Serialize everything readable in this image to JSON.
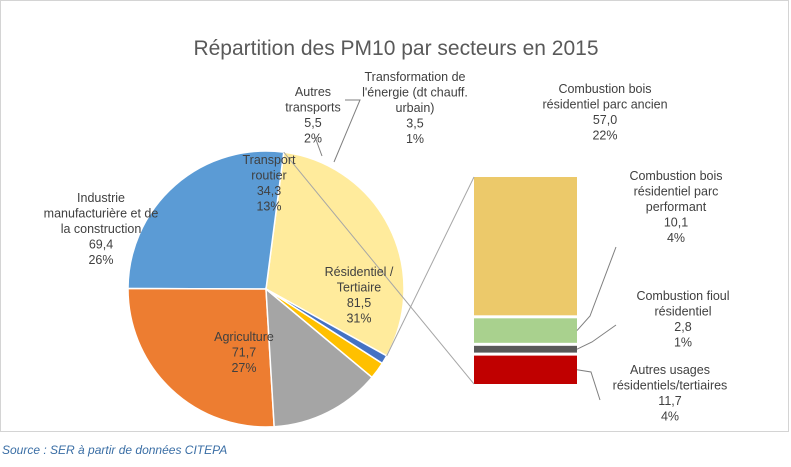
{
  "chart_data": {
    "type": "pie",
    "title": "Répartition des PM10 par secteurs en 2015",
    "slices": [
      {
        "label_lines": [
          "Résidentiel /",
          "Tertiaire"
        ],
        "value": "81,5",
        "percent": "31%",
        "pct": 31,
        "color": "#FFEB9C",
        "text_color": "#404040"
      },
      {
        "label_lines": [
          "Agriculture"
        ],
        "value": "71,7",
        "percent": "27%",
        "pct": 27,
        "color": "#5B9BD5",
        "text_color": "#404040"
      },
      {
        "label_lines": [
          "Industrie",
          "manufacturière et de",
          "la construction"
        ],
        "value": "69,4",
        "percent": "26%",
        "pct": 26,
        "color": "#ED7D31",
        "text_color": "#404040"
      },
      {
        "label_lines": [
          "Transport",
          "routier"
        ],
        "value": "34,3",
        "percent": "13%",
        "pct": 13,
        "color": "#A5A5A5",
        "text_color": "#404040"
      },
      {
        "label_lines": [
          "Autres",
          "transports"
        ],
        "value": "5,5",
        "percent": "2%",
        "pct": 2,
        "color": "#FFC000",
        "text_color": "#404040"
      },
      {
        "label_lines": [
          "Transformation de",
          "l'énergie (dt chauff.",
          "urbain)"
        ],
        "value": "3,5",
        "percent": "1%",
        "pct": 1,
        "color": "#4472C4",
        "text_color": "#404040"
      }
    ],
    "breakdown": {
      "of": "Résidentiel / Tertiaire",
      "segments": [
        {
          "label_lines": [
            "Combustion bois",
            "résidentiel parc ancien"
          ],
          "value": "57,0",
          "percent": "22%",
          "amount": 57.0,
          "color": "#ECC96A"
        },
        {
          "label_lines": [
            "Combustion bois",
            "résidentiel parc",
            "performant"
          ],
          "value": "10,1",
          "percent": "4%",
          "amount": 10.1,
          "color": "#A9D18E"
        },
        {
          "label_lines": [
            "Combustion fioul",
            "résidentiel"
          ],
          "value": "2,8",
          "percent": "1%",
          "amount": 2.8,
          "color": "#595959"
        },
        {
          "label_lines": [
            "Autres usages",
            "résidentiels/tertiaires"
          ],
          "value": "11,7",
          "percent": "4%",
          "amount": 11.7,
          "color": "#C00000"
        }
      ]
    }
  },
  "source": "Source : SER à partir de données CITEPA"
}
